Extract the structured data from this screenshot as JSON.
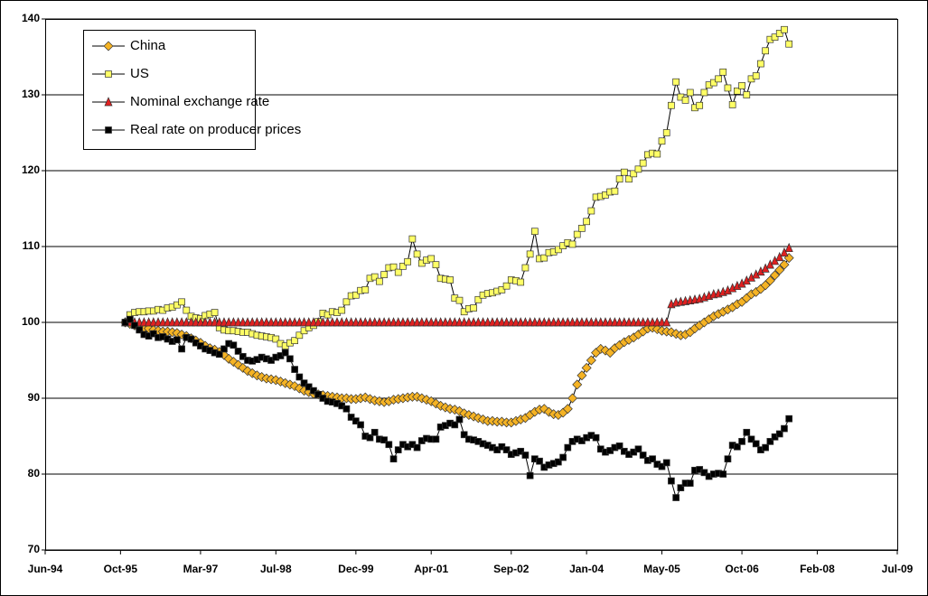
{
  "chart_data": {
    "type": "line",
    "legend": "upper left",
    "grid": true,
    "ylim": [
      70,
      140
    ],
    "yticks": [
      70,
      80,
      90,
      100,
      110,
      120,
      130,
      140
    ],
    "xlim": [
      "1994-06",
      "2009-07"
    ],
    "xticks": [
      {
        "value": "1994-06",
        "label": "Jun-94"
      },
      {
        "value": "1995-10",
        "label": "Oct-95"
      },
      {
        "value": "1997-03",
        "label": "Mar-97"
      },
      {
        "value": "1998-07",
        "label": "Jul-98"
      },
      {
        "value": "1999-12",
        "label": "Dec-99"
      },
      {
        "value": "2001-04",
        "label": "Apr-01"
      },
      {
        "value": "2002-09",
        "label": "Sep-02"
      },
      {
        "value": "2004-01",
        "label": "Jan-04"
      },
      {
        "value": "2005-05",
        "label": "May-05"
      },
      {
        "value": "2006-10",
        "label": "Oct-06"
      },
      {
        "value": "2008-02",
        "label": "Feb-08"
      },
      {
        "value": "2009-07",
        "label": "Jul-09"
      }
    ],
    "x": [
      "1995-11",
      "1995-12",
      "1996-01",
      "1996-02",
      "1996-03",
      "1996-04",
      "1996-05",
      "1996-06",
      "1996-07",
      "1996-08",
      "1996-09",
      "1996-10",
      "1996-11",
      "1996-12",
      "1997-01",
      "1997-02",
      "1997-03",
      "1997-04",
      "1997-05",
      "1997-06",
      "1997-07",
      "1997-08",
      "1997-09",
      "1997-10",
      "1997-11",
      "1997-12",
      "1998-01",
      "1998-02",
      "1998-03",
      "1998-04",
      "1998-05",
      "1998-06",
      "1998-07",
      "1998-08",
      "1998-09",
      "1998-10",
      "1998-11",
      "1998-12",
      "1999-01",
      "1999-02",
      "1999-03",
      "1999-04",
      "1999-05",
      "1999-06",
      "1999-07",
      "1999-08",
      "1999-09",
      "1999-10",
      "1999-11",
      "1999-12",
      "2000-01",
      "2000-02",
      "2000-03",
      "2000-04",
      "2000-05",
      "2000-06",
      "2000-07",
      "2000-08",
      "2000-09",
      "2000-10",
      "2000-11",
      "2000-12",
      "2001-01",
      "2001-02",
      "2001-03",
      "2001-04",
      "2001-05",
      "2001-06",
      "2001-07",
      "2001-08",
      "2001-09",
      "2001-10",
      "2001-11",
      "2001-12",
      "2002-01",
      "2002-02",
      "2002-03",
      "2002-04",
      "2002-05",
      "2002-06",
      "2002-07",
      "2002-08",
      "2002-09",
      "2002-10",
      "2002-11",
      "2002-12",
      "2003-01",
      "2003-02",
      "2003-03",
      "2003-04",
      "2003-05",
      "2003-06",
      "2003-07",
      "2003-08",
      "2003-09",
      "2003-10",
      "2003-11",
      "2003-12",
      "2004-01",
      "2004-02",
      "2004-03",
      "2004-04",
      "2004-05",
      "2004-06",
      "2004-07",
      "2004-08",
      "2004-09",
      "2004-10",
      "2004-11",
      "2004-12",
      "2005-01",
      "2005-02",
      "2005-03",
      "2005-04",
      "2005-05",
      "2005-06",
      "2005-07",
      "2005-08",
      "2005-09",
      "2005-10",
      "2005-11",
      "2005-12",
      "2006-01",
      "2006-02",
      "2006-03",
      "2006-04",
      "2006-05",
      "2006-06",
      "2006-07",
      "2006-08",
      "2006-09",
      "2006-10",
      "2006-11",
      "2006-12",
      "2007-01",
      "2007-02",
      "2007-03",
      "2007-04",
      "2007-05",
      "2007-06",
      "2007-07",
      "2007-08"
    ],
    "series": [
      {
        "name": "China",
        "color": "#f5b324",
        "marker": "diamond",
        "values": [
          100,
          99.8,
          99.6,
          99.4,
          99.3,
          99.2,
          99.0,
          98.9,
          98.8,
          98.8,
          98.7,
          98.6,
          98.4,
          98.2,
          97.9,
          97.6,
          97.3,
          96.9,
          96.6,
          96.4,
          96.1,
          95.7,
          95.2,
          94.8,
          94.4,
          94.0,
          93.6,
          93.3,
          93.0,
          92.8,
          92.6,
          92.5,
          92.4,
          92.2,
          92.0,
          91.8,
          91.6,
          91.3,
          91.0,
          90.8,
          90.6,
          90.5,
          90.4,
          90.3,
          90.2,
          90.1,
          90.0,
          90.0,
          89.9,
          89.9,
          90.0,
          90.1,
          89.9,
          89.7,
          89.6,
          89.5,
          89.6,
          89.8,
          89.9,
          90.0,
          90.1,
          90.2,
          90.2,
          90.0,
          89.8,
          89.6,
          89.3,
          89.0,
          88.8,
          88.6,
          88.5,
          88.3,
          88.0,
          87.8,
          87.6,
          87.4,
          87.2,
          87.0,
          87.0,
          86.9,
          86.9,
          86.8,
          86.8,
          87.0,
          87.2,
          87.4,
          87.8,
          88.2,
          88.5,
          88.6,
          88.2,
          87.9,
          87.8,
          88.1,
          88.6,
          90.0,
          91.8,
          93.0,
          94.0,
          95.0,
          96.0,
          96.5,
          96.3,
          96.0,
          96.6,
          97.0,
          97.4,
          97.7,
          98.0,
          98.4,
          98.8,
          99.2,
          99.3,
          99.1,
          98.9,
          98.8,
          98.7,
          98.5,
          98.3,
          98.4,
          98.7,
          99.2,
          99.6,
          100.0,
          100.4,
          100.8,
          101.1,
          101.4,
          101.7,
          102.0,
          102.4,
          102.7,
          103.2,
          103.7,
          104.0,
          104.4,
          104.9,
          105.5,
          106.2,
          106.9,
          107.6,
          108.5
        ]
      },
      {
        "name": "US",
        "color": "#ffff66",
        "marker": "square",
        "values": [
          100,
          101.0,
          101.3,
          101.4,
          101.4,
          101.5,
          101.5,
          101.7,
          101.6,
          101.9,
          102.0,
          102.3,
          102.7,
          101.6,
          100.8,
          100.6,
          100.5,
          100.9,
          101.1,
          101.3,
          99.3,
          99.0,
          98.9,
          98.9,
          98.8,
          98.7,
          98.7,
          98.5,
          98.3,
          98.2,
          98.1,
          98.0,
          97.8,
          97.2,
          96.9,
          97.3,
          97.6,
          98.3,
          98.9,
          99.3,
          99.6,
          100.1,
          101.2,
          101.0,
          101.4,
          101.3,
          101.6,
          102.7,
          103.5,
          103.6,
          104.2,
          104.3,
          105.8,
          106.0,
          105.4,
          106.3,
          107.2,
          107.3,
          106.6,
          107.4,
          108.0,
          111.0,
          109.0,
          107.8,
          108.2,
          108.4,
          107.6,
          105.8,
          105.7,
          105.6,
          103.2,
          102.9,
          101.4,
          101.8,
          101.9,
          103.0,
          103.6,
          103.8,
          103.9,
          104.1,
          104.3,
          104.8,
          105.6,
          105.5,
          105.3,
          107.2,
          109.0,
          112.0,
          108.4,
          108.5,
          109.2,
          109.3,
          109.6,
          110.1,
          110.5,
          110.3,
          111.6,
          112.4,
          113.3,
          114.7,
          116.5,
          116.6,
          116.8,
          117.2,
          117.3,
          118.9,
          119.8,
          118.9,
          119.6,
          120.2,
          121.0,
          122.1,
          122.3,
          122.2,
          123.9,
          125.0,
          128.6,
          131.7,
          129.7,
          129.3,
          130.3,
          128.3,
          128.6,
          130.3,
          131.3,
          131.6,
          132.1,
          133.0,
          130.9,
          128.7,
          130.5,
          131.2,
          130.0,
          132.1,
          132.5,
          134.1,
          135.8,
          137.3,
          137.6,
          138.1,
          138.6,
          136.7
        ]
      },
      {
        "name": "Nominal exchange rate",
        "color": "#e02020",
        "marker": "triangle",
        "values": [
          100,
          100,
          100,
          100,
          100,
          100,
          100,
          100,
          100,
          100,
          100,
          100,
          100,
          100,
          100,
          100,
          100,
          100,
          100,
          100,
          100,
          100,
          100,
          100,
          100,
          100,
          100,
          100,
          100,
          100,
          100,
          100,
          100,
          100,
          100,
          100,
          100,
          100,
          100,
          100,
          100,
          100,
          100,
          100,
          100,
          100,
          100,
          100,
          100,
          100,
          100,
          100,
          100,
          100,
          100,
          100,
          100,
          100,
          100,
          100,
          100,
          100,
          100,
          100,
          100,
          100,
          100,
          100,
          100,
          100,
          100,
          100,
          100,
          100,
          100,
          100,
          100,
          100,
          100,
          100,
          100,
          100,
          100,
          100,
          100,
          100,
          100,
          100,
          100,
          100,
          100,
          100,
          100,
          100,
          100,
          100,
          100,
          100,
          100,
          100,
          100,
          100,
          100,
          100,
          100,
          100,
          100,
          100,
          100,
          100,
          100,
          100,
          100,
          100,
          100,
          100,
          102.4,
          102.6,
          102.7,
          102.8,
          102.9,
          103.0,
          103.1,
          103.3,
          103.5,
          103.7,
          103.8,
          104.0,
          104.2,
          104.5,
          104.8,
          105.1,
          105.5,
          105.9,
          106.3,
          106.7,
          107.1,
          107.6,
          108.1,
          108.6,
          109.2,
          109.8
        ]
      },
      {
        "name": "Real rate on producer prices",
        "color": "#000000",
        "marker": "square",
        "values": [
          100.0,
          100.4,
          99.6,
          99.0,
          98.4,
          98.2,
          98.5,
          98.0,
          98.1,
          97.8,
          97.5,
          97.7,
          96.5,
          98.0,
          97.8,
          97.3,
          96.9,
          96.5,
          96.3,
          96.0,
          95.8,
          96.5,
          97.2,
          97.0,
          96.2,
          95.5,
          95.0,
          94.9,
          95.1,
          95.4,
          95.2,
          95.0,
          95.4,
          95.6,
          96.0,
          95.2,
          93.8,
          92.8,
          92.0,
          91.5,
          91.0,
          90.5,
          90.0,
          89.6,
          89.5,
          89.3,
          89.0,
          88.6,
          87.5,
          87.0,
          86.5,
          85.0,
          84.8,
          85.5,
          84.6,
          84.5,
          83.9,
          82.0,
          83.2,
          83.9,
          83.6,
          83.9,
          83.5,
          84.4,
          84.7,
          84.6,
          84.6,
          86.2,
          86.4,
          86.7,
          86.5,
          87.2,
          85.2,
          84.6,
          84.5,
          84.3,
          84.0,
          83.8,
          83.5,
          83.2,
          83.6,
          83.2,
          82.6,
          82.8,
          83.0,
          82.5,
          79.8,
          82.0,
          81.7,
          80.9,
          81.2,
          81.4,
          81.6,
          82.2,
          83.5,
          84.3,
          84.6,
          84.4,
          84.8,
          85.1,
          84.8,
          83.3,
          82.9,
          83.1,
          83.5,
          83.7,
          83.0,
          82.6,
          82.9,
          83.3,
          82.5,
          81.8,
          82.0,
          81.3,
          81.0,
          81.5,
          79.1,
          76.9,
          78.2,
          78.8,
          78.8,
          80.5,
          80.6,
          80.2,
          79.7,
          80.0,
          80.1,
          80.0,
          82.0,
          83.8,
          83.6,
          84.3,
          85.5,
          84.6,
          84.0,
          83.2,
          83.5,
          84.3,
          84.9,
          85.3,
          86.0,
          87.3
        ]
      }
    ]
  }
}
